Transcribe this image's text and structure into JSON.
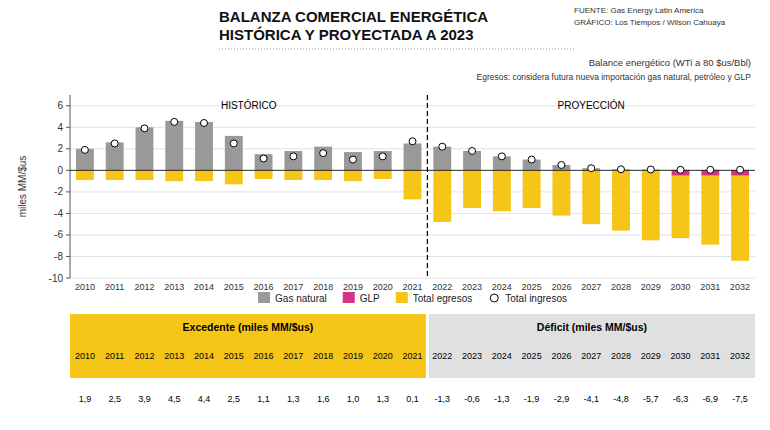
{
  "chart_data": {
    "type": "bar",
    "title": [
      "BALANZA COMERCIAL ENERGÉTICA",
      "HISTÓRICA Y PROYECTADA A 2023"
    ],
    "subtitle": [
      "Balance energético (WTi a 80 $us/Bbl)",
      "Egresos: considera futura nueva importación gas natural, petróleo y GLP"
    ],
    "annotations": [
      "FUENTE: Gas Energy Latin America",
      "GRÁFICO: Los Tiempos / Wilson Cahuaya"
    ],
    "periods": [
      {
        "label": "HISTÓRICO",
        "from": 2010,
        "to": 2021
      },
      {
        "label": "PROYECCIÓN",
        "from": 2022,
        "to": 2032
      }
    ],
    "ylabel": "miles MM/$us",
    "categories": [
      2010,
      2011,
      2012,
      2013,
      2014,
      2015,
      2016,
      2017,
      2018,
      2019,
      2020,
      2021,
      2022,
      2023,
      2024,
      2025,
      2026,
      2027,
      2028,
      2029,
      2030,
      2031,
      2032
    ],
    "series": [
      {
        "name": "Gas natural",
        "color": "#999999",
        "values": [
          2.0,
          2.6,
          4.0,
          4.6,
          4.5,
          3.2,
          1.5,
          1.8,
          2.2,
          1.7,
          1.8,
          2.5,
          2.2,
          1.8,
          1.3,
          1.0,
          0.5,
          0.2,
          0.1,
          0.08,
          0.05,
          0.05,
          0.05
        ]
      },
      {
        "name": "GLP",
        "color": "#D63384",
        "values": [
          0,
          0,
          0,
          0,
          0,
          0,
          0,
          0,
          0,
          0,
          0,
          0,
          0,
          0,
          0,
          0,
          0,
          0,
          0,
          0,
          -0.5,
          -0.5,
          -0.5
        ]
      },
      {
        "name": "Total egresos",
        "color": "#F5C518",
        "values": [
          -0.9,
          -0.9,
          -0.9,
          -1.0,
          -1.0,
          -1.3,
          -0.8,
          -0.9,
          -0.9,
          -1.0,
          -0.8,
          -2.7,
          -4.8,
          -3.5,
          -3.8,
          -3.5,
          -4.2,
          -5.0,
          -5.6,
          -6.5,
          -5.8,
          -6.4,
          -7.9
        ]
      },
      {
        "name": "Total ingresos",
        "type": "scatter",
        "marker": "circle",
        "color": "#ffffff",
        "values": [
          1.9,
          2.5,
          3.9,
          4.5,
          4.4,
          2.5,
          1.1,
          1.3,
          1.6,
          1.0,
          1.3,
          2.7,
          2.2,
          1.8,
          1.3,
          1.0,
          0.5,
          0.2,
          0.1,
          0.08,
          0.05,
          0.05,
          0.05
        ]
      }
    ],
    "stacked": true,
    "ylim": [
      -10,
      7
    ],
    "yticks": [
      -10,
      -8,
      -6,
      -4,
      -2,
      0,
      2,
      4,
      6
    ],
    "grid": true,
    "legend": "bottom",
    "table": {
      "headers": [
        "Excedente (miles MM/$us)",
        "Déficit (miles MM/$us)"
      ],
      "colors": [
        "#F5C518",
        "#e0e0e0"
      ],
      "values": [
        1.9,
        2.5,
        3.9,
        4.5,
        4.4,
        2.5,
        1.1,
        1.3,
        1.6,
        1.0,
        1.3,
        0.1,
        -1.3,
        -0.6,
        -1.3,
        -1.9,
        -2.9,
        -4.1,
        -4.8,
        -5.7,
        -6.3,
        -6.9,
        -7.5
      ],
      "value_labels": [
        "1,9",
        "2,5",
        "3,9",
        "4,5",
        "4,4",
        "2,5",
        "1,1",
        "1,3",
        "1,6",
        "1,0",
        "1,3",
        "0,1",
        "-1,3",
        "-0,6",
        "-1,3",
        "-1,9",
        "-2,9",
        "-4,1",
        "-4,8",
        "-5,7",
        "-6,3",
        "-6,9",
        "-7,5"
      ]
    }
  }
}
